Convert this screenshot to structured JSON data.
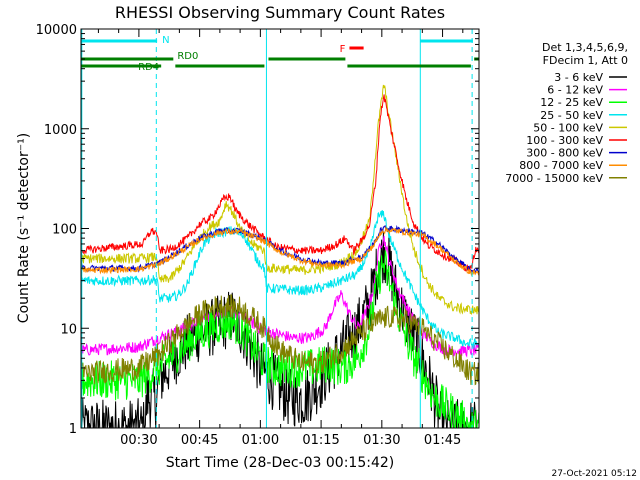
{
  "chart_data": {
    "type": "line",
    "title": "RHESSI Observing Summary Count Rates",
    "xlabel": "Start Time (28-Dec-03 00:15:42)",
    "ylabel": "Count Rate (s⁻¹ detector⁻¹)",
    "y_scale": "log",
    "ylim": [
      1,
      10000
    ],
    "xlim_minutes": [
      15.7,
      114.0
    ],
    "x_ticks": [
      {
        "label": "00:30",
        "minute": 30
      },
      {
        "label": "00:45",
        "minute": 45
      },
      {
        "label": "01:00",
        "minute": 60
      },
      {
        "label": "01:15",
        "minute": 75
      },
      {
        "label": "01:30",
        "minute": 90
      },
      {
        "label": "01:45",
        "minute": 105
      }
    ],
    "y_ticks": [
      {
        "label": "1",
        "value": 1
      },
      {
        "label": "10",
        "value": 10
      },
      {
        "label": "100",
        "value": 100
      },
      {
        "label": "1000",
        "value": 1000
      },
      {
        "label": "10000",
        "value": 10000
      }
    ],
    "legend_header": [
      "Det 1,3,4,5,6,9,",
      "FDecim 1, Att 0"
    ],
    "legend_position": "right",
    "footer_date": "27-Oct-2021 05:12",
    "flags": [
      {
        "label": "N",
        "color": "#00e5ee",
        "segments": [
          [
            15.7,
            34.5
          ],
          [
            99.5,
            112.5
          ]
        ],
        "level": 1
      },
      {
        "label": "F",
        "color": "#ff0000",
        "segments": [
          [
            82.0,
            85.5
          ]
        ],
        "level": 2
      },
      {
        "label": "RD0",
        "color": "#007f00",
        "segments": [
          [
            15.7,
            38.5
          ],
          [
            62.0,
            81.0
          ],
          [
            112.8,
            114.0
          ]
        ],
        "level": 3
      },
      {
        "label": "RD4",
        "color": "#007f00",
        "segments": [
          [
            15.7,
            35.5
          ],
          [
            39.0,
            61.0
          ],
          [
            81.5,
            112.0
          ]
        ],
        "level": 4
      }
    ],
    "vlines": [
      {
        "minute": 15.9,
        "color": "#00e5ee",
        "style": "solid"
      },
      {
        "minute": 34.3,
        "color": "#00e5ee",
        "style": "dashed"
      },
      {
        "minute": 61.5,
        "color": "#00e5ee",
        "style": "solid"
      },
      {
        "minute": 99.5,
        "color": "#00e5ee",
        "style": "solid"
      },
      {
        "minute": 112.3,
        "color": "#00e5ee",
        "style": "dashed"
      }
    ],
    "series": [
      {
        "name": "3 - 6 keV",
        "color": "#000000",
        "noise": 0.3,
        "points": [
          [
            15.7,
            1
          ],
          [
            31.5,
            1
          ],
          [
            32,
            2
          ],
          [
            34.5,
            2
          ],
          [
            35,
            3
          ],
          [
            40,
            6
          ],
          [
            45,
            9
          ],
          [
            50,
            11
          ],
          [
            53,
            13
          ],
          [
            56,
            9
          ],
          [
            60,
            4
          ],
          [
            63,
            3
          ],
          [
            67,
            2
          ],
          [
            71,
            2
          ],
          [
            75,
            3
          ],
          [
            80,
            6
          ],
          [
            84,
            10
          ],
          [
            87,
            18
          ],
          [
            89,
            40
          ],
          [
            90.5,
            60
          ],
          [
            92,
            40
          ],
          [
            94,
            20
          ],
          [
            96,
            12
          ],
          [
            98,
            8
          ],
          [
            100,
            5
          ],
          [
            103,
            2
          ],
          [
            105,
            1
          ],
          [
            114,
            1
          ]
        ]
      },
      {
        "name": "6 - 12 keV",
        "color": "#ff00ff",
        "noise": 0.06,
        "points": [
          [
            15.7,
            6
          ],
          [
            30,
            6.5
          ],
          [
            35,
            8
          ],
          [
            40,
            9.5
          ],
          [
            45,
            12
          ],
          [
            50,
            14
          ],
          [
            53,
            15
          ],
          [
            57,
            12
          ],
          [
            60,
            10
          ],
          [
            63,
            9
          ],
          [
            68,
            8
          ],
          [
            72,
            8
          ],
          [
            76,
            10
          ],
          [
            78,
            16
          ],
          [
            80,
            22
          ],
          [
            82,
            14
          ],
          [
            84,
            10
          ],
          [
            86,
            14
          ],
          [
            88,
            25
          ],
          [
            89.5,
            70
          ],
          [
            90.5,
            80
          ],
          [
            92,
            45
          ],
          [
            94,
            25
          ],
          [
            97,
            14
          ],
          [
            100,
            9
          ],
          [
            103,
            7
          ],
          [
            106,
            6
          ],
          [
            110,
            6
          ],
          [
            114,
            6
          ]
        ]
      },
      {
        "name": "12 - 25 keV",
        "color": "#00ff00",
        "noise": 0.2,
        "points": [
          [
            15.7,
            3
          ],
          [
            30,
            3
          ],
          [
            35,
            4
          ],
          [
            40,
            6
          ],
          [
            45,
            9
          ],
          [
            50,
            11
          ],
          [
            53,
            12
          ],
          [
            56,
            9
          ],
          [
            60,
            5
          ],
          [
            63,
            4
          ],
          [
            68,
            4
          ],
          [
            73,
            4
          ],
          [
            77,
            4.5
          ],
          [
            80,
            4
          ],
          [
            84,
            5
          ],
          [
            87,
            10
          ],
          [
            89,
            30
          ],
          [
            90.5,
            45
          ],
          [
            92,
            28
          ],
          [
            94,
            14
          ],
          [
            96,
            8
          ],
          [
            98,
            5
          ],
          [
            100,
            3.5
          ],
          [
            103,
            2
          ],
          [
            106,
            1.6
          ],
          [
            110,
            1.2
          ],
          [
            112,
            1.0
          ],
          [
            114,
            1.0
          ]
        ]
      },
      {
        "name": "25 - 50 keV",
        "color": "#00e5ee",
        "noise": 0.05,
        "points": [
          [
            15.7,
            30
          ],
          [
            30,
            30
          ],
          [
            34.5,
            31
          ],
          [
            35,
            20
          ],
          [
            38,
            20
          ],
          [
            40,
            22
          ],
          [
            42,
            28
          ],
          [
            44,
            45
          ],
          [
            46,
            70
          ],
          [
            49,
            90
          ],
          [
            53,
            95
          ],
          [
            56,
            85
          ],
          [
            59,
            50
          ],
          [
            61,
            40
          ],
          [
            61.5,
            25
          ],
          [
            64,
            25
          ],
          [
            68,
            24
          ],
          [
            72,
            24
          ],
          [
            76,
            26
          ],
          [
            80,
            30
          ],
          [
            84,
            35
          ],
          [
            87,
            60
          ],
          [
            89,
            130
          ],
          [
            90.5,
            140
          ],
          [
            92,
            80
          ],
          [
            95,
            40
          ],
          [
            98,
            22
          ],
          [
            101,
            13
          ],
          [
            104,
            9
          ],
          [
            108,
            8
          ],
          [
            111,
            7
          ],
          [
            114,
            7
          ]
        ]
      },
      {
        "name": "50 - 100 keV",
        "color": "#ccc800",
        "noise": 0.05,
        "points": [
          [
            15.7,
            50
          ],
          [
            30,
            50
          ],
          [
            34.5,
            52
          ],
          [
            35,
            30
          ],
          [
            38,
            32
          ],
          [
            41,
            45
          ],
          [
            44,
            70
          ],
          [
            47,
            100
          ],
          [
            50,
            120
          ],
          [
            51.5,
            180
          ],
          [
            53,
            150
          ],
          [
            55,
            100
          ],
          [
            58,
            70
          ],
          [
            61,
            60
          ],
          [
            61.5,
            40
          ],
          [
            64,
            40
          ],
          [
            70,
            38
          ],
          [
            75,
            40
          ],
          [
            80,
            45
          ],
          [
            84,
            60
          ],
          [
            87,
            120
          ],
          [
            89,
            1000
          ],
          [
            90.5,
            2800
          ],
          [
            92,
            1200
          ],
          [
            94,
            400
          ],
          [
            96,
            130
          ],
          [
            98,
            60
          ],
          [
            101,
            30
          ],
          [
            104,
            20
          ],
          [
            108,
            16
          ],
          [
            114,
            15
          ]
        ]
      },
      {
        "name": "100 - 300 keV",
        "color": "#ff0000",
        "noise": 0.04,
        "points": [
          [
            15.7,
            60
          ],
          [
            31,
            70
          ],
          [
            33,
            95
          ],
          [
            34.5,
            90
          ],
          [
            35,
            60
          ],
          [
            38,
            62
          ],
          [
            42,
            80
          ],
          [
            45,
            110
          ],
          [
            48,
            130
          ],
          [
            51,
            200
          ],
          [
            52.5,
            210
          ],
          [
            54,
            150
          ],
          [
            57,
            110
          ],
          [
            61,
            80
          ],
          [
            64,
            65
          ],
          [
            70,
            60
          ],
          [
            75,
            60
          ],
          [
            79,
            70
          ],
          [
            81,
            80
          ],
          [
            83,
            60
          ],
          [
            85,
            75
          ],
          [
            87,
            110
          ],
          [
            88.5,
            300
          ],
          [
            89.5,
            1200
          ],
          [
            90.5,
            2200
          ],
          [
            92,
            1100
          ],
          [
            94,
            450
          ],
          [
            96,
            200
          ],
          [
            98,
            110
          ],
          [
            101,
            70
          ],
          [
            105,
            55
          ],
          [
            109,
            45
          ],
          [
            112,
            38
          ],
          [
            113,
            60
          ],
          [
            114,
            60
          ]
        ]
      },
      {
        "name": "300 - 800 keV",
        "color": "#0000cc",
        "noise": 0.03,
        "points": [
          [
            15.7,
            40
          ],
          [
            30,
            40
          ],
          [
            35,
            45
          ],
          [
            40,
            60
          ],
          [
            45,
            80
          ],
          [
            50,
            95
          ],
          [
            55,
            95
          ],
          [
            60,
            80
          ],
          [
            65,
            60
          ],
          [
            70,
            50
          ],
          [
            75,
            45
          ],
          [
            80,
            45
          ],
          [
            85,
            52
          ],
          [
            88,
            70
          ],
          [
            90,
            100
          ],
          [
            92,
            100
          ],
          [
            96,
            95
          ],
          [
            100,
            90
          ],
          [
            104,
            70
          ],
          [
            108,
            50
          ],
          [
            112,
            38
          ],
          [
            114,
            38
          ]
        ]
      },
      {
        "name": "800 - 7000 keV",
        "color": "#ff8c00",
        "noise": 0.03,
        "points": [
          [
            15.7,
            38
          ],
          [
            30,
            39
          ],
          [
            35,
            44
          ],
          [
            40,
            58
          ],
          [
            45,
            78
          ],
          [
            50,
            92
          ],
          [
            55,
            93
          ],
          [
            60,
            78
          ],
          [
            65,
            58
          ],
          [
            70,
            48
          ],
          [
            75,
            43
          ],
          [
            80,
            43
          ],
          [
            85,
            50
          ],
          [
            88,
            68
          ],
          [
            90,
            95
          ],
          [
            92,
            96
          ],
          [
            96,
            92
          ],
          [
            100,
            86
          ],
          [
            104,
            66
          ],
          [
            108,
            47
          ],
          [
            112,
            36
          ],
          [
            114,
            36
          ]
        ]
      },
      {
        "name": "7000 - 15000 keV",
        "color": "#808000",
        "noise": 0.12,
        "points": [
          [
            15.7,
            3.5
          ],
          [
            30,
            4
          ],
          [
            35,
            5.5
          ],
          [
            40,
            9
          ],
          [
            45,
            14
          ],
          [
            50,
            17
          ],
          [
            55,
            16
          ],
          [
            60,
            11
          ],
          [
            65,
            6
          ],
          [
            70,
            4.5
          ],
          [
            75,
            4.5
          ],
          [
            80,
            6
          ],
          [
            85,
            9
          ],
          [
            89,
            12
          ],
          [
            92,
            13
          ],
          [
            96,
            12
          ],
          [
            100,
            10
          ],
          [
            104,
            7
          ],
          [
            108,
            5
          ],
          [
            112,
            3.5
          ],
          [
            114,
            3.5
          ]
        ]
      }
    ]
  }
}
